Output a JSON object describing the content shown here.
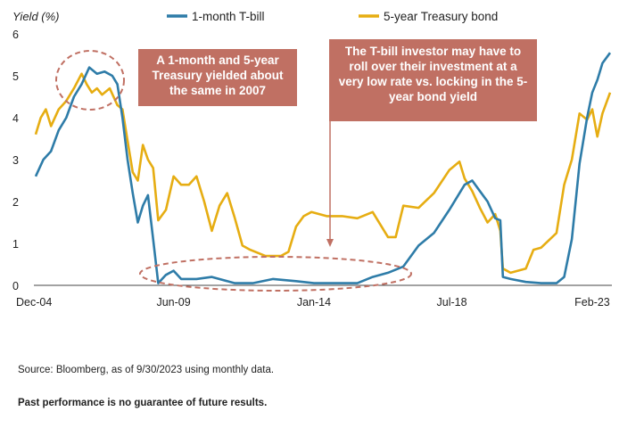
{
  "chart_data": {
    "type": "line",
    "ylabel": "Yield (%)",
    "ylim": [
      0,
      6
    ],
    "yticks": [
      0,
      1,
      2,
      3,
      4,
      5,
      6
    ],
    "xrange": [
      "2004-12",
      "2023-09"
    ],
    "xticks": [
      {
        "label": "Dec-04",
        "date": "2004-12"
      },
      {
        "label": "Jun-09",
        "date": "2009-06"
      },
      {
        "label": "Jan-14",
        "date": "2014-01"
      },
      {
        "label": "Jul-18",
        "date": "2018-07"
      },
      {
        "label": "Feb-23",
        "date": "2023-02"
      }
    ],
    "grid": false,
    "legend_position": "top",
    "series": [
      {
        "name": "1-month T-bill",
        "color": "#2e7ca8",
        "points": [
          [
            "2004-12",
            2.6
          ],
          [
            "2005-03",
            3.0
          ],
          [
            "2005-06",
            3.2
          ],
          [
            "2005-09",
            3.7
          ],
          [
            "2005-12",
            4.0
          ],
          [
            "2006-03",
            4.5
          ],
          [
            "2006-06",
            4.8
          ],
          [
            "2006-09",
            5.2
          ],
          [
            "2006-12",
            5.05
          ],
          [
            "2007-03",
            5.1
          ],
          [
            "2007-06",
            5.0
          ],
          [
            "2007-08",
            4.8
          ],
          [
            "2007-10",
            4.0
          ],
          [
            "2007-12",
            3.0
          ],
          [
            "2008-02",
            2.2
          ],
          [
            "2008-04",
            1.5
          ],
          [
            "2008-06",
            1.9
          ],
          [
            "2008-08",
            2.15
          ],
          [
            "2008-10",
            1.1
          ],
          [
            "2008-12",
            0.05
          ],
          [
            "2009-03",
            0.25
          ],
          [
            "2009-06",
            0.35
          ],
          [
            "2009-09",
            0.15
          ],
          [
            "2010-03",
            0.15
          ],
          [
            "2010-09",
            0.2
          ],
          [
            "2011-06",
            0.05
          ],
          [
            "2012-01",
            0.05
          ],
          [
            "2012-09",
            0.15
          ],
          [
            "2013-06",
            0.1
          ],
          [
            "2014-01",
            0.05
          ],
          [
            "2014-09",
            0.05
          ],
          [
            "2015-06",
            0.05
          ],
          [
            "2015-12",
            0.2
          ],
          [
            "2016-06",
            0.3
          ],
          [
            "2016-12",
            0.45
          ],
          [
            "2017-06",
            0.95
          ],
          [
            "2017-12",
            1.25
          ],
          [
            "2018-06",
            1.8
          ],
          [
            "2018-12",
            2.4
          ],
          [
            "2019-03",
            2.5
          ],
          [
            "2019-06",
            2.25
          ],
          [
            "2019-09",
            2.0
          ],
          [
            "2019-12",
            1.6
          ],
          [
            "2020-02",
            1.55
          ],
          [
            "2020-03",
            0.2
          ],
          [
            "2020-06",
            0.15
          ],
          [
            "2020-12",
            0.08
          ],
          [
            "2021-06",
            0.05
          ],
          [
            "2021-12",
            0.05
          ],
          [
            "2022-03",
            0.2
          ],
          [
            "2022-06",
            1.1
          ],
          [
            "2022-09",
            2.9
          ],
          [
            "2022-12",
            4.0
          ],
          [
            "2023-02",
            4.6
          ],
          [
            "2023-04",
            4.9
          ],
          [
            "2023-06",
            5.3
          ],
          [
            "2023-09",
            5.55
          ]
        ]
      },
      {
        "name": "5-year Treasury bond",
        "color": "#e6ad12",
        "points": [
          [
            "2004-12",
            3.6
          ],
          [
            "2005-02",
            4.0
          ],
          [
            "2005-04",
            4.2
          ],
          [
            "2005-06",
            3.8
          ],
          [
            "2005-09",
            4.2
          ],
          [
            "2005-12",
            4.4
          ],
          [
            "2006-03",
            4.7
          ],
          [
            "2006-06",
            5.05
          ],
          [
            "2006-08",
            4.8
          ],
          [
            "2006-10",
            4.6
          ],
          [
            "2006-12",
            4.7
          ],
          [
            "2007-02",
            4.55
          ],
          [
            "2007-05",
            4.7
          ],
          [
            "2007-08",
            4.3
          ],
          [
            "2007-10",
            4.2
          ],
          [
            "2007-12",
            3.45
          ],
          [
            "2008-02",
            2.7
          ],
          [
            "2008-04",
            2.5
          ],
          [
            "2008-06",
            3.35
          ],
          [
            "2008-08",
            3.0
          ],
          [
            "2008-10",
            2.8
          ],
          [
            "2008-12",
            1.55
          ],
          [
            "2009-03",
            1.8
          ],
          [
            "2009-06",
            2.6
          ],
          [
            "2009-09",
            2.4
          ],
          [
            "2009-12",
            2.4
          ],
          [
            "2010-03",
            2.6
          ],
          [
            "2010-06",
            2.0
          ],
          [
            "2010-09",
            1.3
          ],
          [
            "2010-12",
            1.9
          ],
          [
            "2011-03",
            2.2
          ],
          [
            "2011-06",
            1.6
          ],
          [
            "2011-09",
            0.95
          ],
          [
            "2011-12",
            0.85
          ],
          [
            "2012-06",
            0.7
          ],
          [
            "2012-12",
            0.7
          ],
          [
            "2013-03",
            0.8
          ],
          [
            "2013-06",
            1.4
          ],
          [
            "2013-09",
            1.65
          ],
          [
            "2013-12",
            1.75
          ],
          [
            "2014-06",
            1.65
          ],
          [
            "2014-12",
            1.65
          ],
          [
            "2015-06",
            1.6
          ],
          [
            "2015-12",
            1.75
          ],
          [
            "2016-06",
            1.15
          ],
          [
            "2016-09",
            1.15
          ],
          [
            "2016-12",
            1.9
          ],
          [
            "2017-06",
            1.85
          ],
          [
            "2017-12",
            2.2
          ],
          [
            "2018-06",
            2.75
          ],
          [
            "2018-10",
            2.95
          ],
          [
            "2018-12",
            2.55
          ],
          [
            "2019-03",
            2.25
          ],
          [
            "2019-06",
            1.85
          ],
          [
            "2019-09",
            1.5
          ],
          [
            "2019-12",
            1.7
          ],
          [
            "2020-02",
            1.3
          ],
          [
            "2020-03",
            0.4
          ],
          [
            "2020-06",
            0.3
          ],
          [
            "2020-12",
            0.4
          ],
          [
            "2021-03",
            0.85
          ],
          [
            "2021-06",
            0.9
          ],
          [
            "2021-12",
            1.25
          ],
          [
            "2022-03",
            2.4
          ],
          [
            "2022-06",
            3.0
          ],
          [
            "2022-09",
            4.1
          ],
          [
            "2022-12",
            3.95
          ],
          [
            "2023-02",
            4.2
          ],
          [
            "2023-04",
            3.55
          ],
          [
            "2023-06",
            4.1
          ],
          [
            "2023-09",
            4.6
          ]
        ]
      }
    ],
    "annotations": [
      "A 1-month and 5-year Treasury yielded about the same in 2007",
      "The T-bill investor may have to roll over their investment at a very low rate vs. locking in the 5-year bond yield"
    ]
  },
  "legend": {
    "tbill": "1-month T-bill",
    "bond": "5-year Treasury bond",
    "tbill_color": "#2e7ca8",
    "bond_color": "#e6ad12"
  },
  "callouts": {
    "equal_2007": "A 1-month and 5-year Treasury yielded about the same in 2007",
    "rollover": "The T-bill investor may have to roll over their investment at a very low rate vs. locking in the 5-year bond yield",
    "color": "#c07063"
  },
  "footer": {
    "source": "Source: Bloomberg, as of 9/30/2023 using monthly data.",
    "disclaimer": "Past performance is no guarantee of future results."
  }
}
